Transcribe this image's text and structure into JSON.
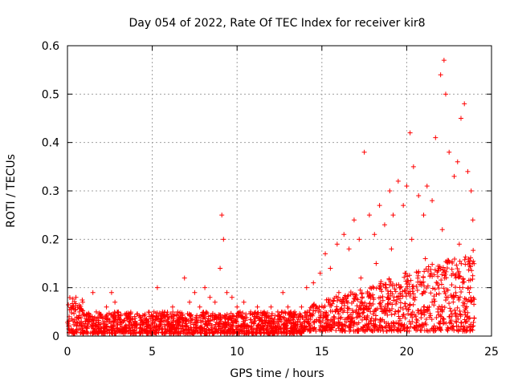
{
  "chart_data": {
    "type": "scatter",
    "title": "Day 054 of 2022, Rate Of TEC Index for receiver kir8",
    "xlabel": "GPS time / hours",
    "ylabel": "ROTI / TECUs",
    "xlim": [
      0,
      25
    ],
    "ylim": [
      0,
      0.6
    ],
    "xticks": [
      0,
      5,
      10,
      15,
      20,
      25
    ],
    "yticks": [
      0,
      0.1,
      0.2,
      0.3,
      0.4,
      0.5,
      0.6
    ],
    "xtick_labels": [
      "0",
      "5",
      "10",
      "15",
      "20",
      "25"
    ],
    "ytick_labels": [
      "0",
      "0.1",
      "0.2",
      "0.3",
      "0.4",
      "0.5",
      "0.6"
    ],
    "grid": true,
    "marker": "+",
    "color": "#ff0000",
    "series": [
      {
        "name": "ROTI",
        "points": [
          [
            0.1,
            0.04
          ],
          [
            0.3,
            0.06
          ],
          [
            0.5,
            0.08
          ],
          [
            0.7,
            0.05
          ],
          [
            0.9,
            0.07
          ],
          [
            1.2,
            0.03
          ],
          [
            1.5,
            0.09
          ],
          [
            1.7,
            0.05
          ],
          [
            2.0,
            0.04
          ],
          [
            2.3,
            0.06
          ],
          [
            2.6,
            0.09
          ],
          [
            2.8,
            0.07
          ],
          [
            3.0,
            0.05
          ],
          [
            3.3,
            0.03
          ],
          [
            3.6,
            0.04
          ],
          [
            4.0,
            0.03
          ],
          [
            4.4,
            0.03
          ],
          [
            4.8,
            0.03
          ],
          [
            5.1,
            0.05
          ],
          [
            5.3,
            0.1
          ],
          [
            5.6,
            0.05
          ],
          [
            5.9,
            0.04
          ],
          [
            6.2,
            0.06
          ],
          [
            6.5,
            0.05
          ],
          [
            6.9,
            0.12
          ],
          [
            7.2,
            0.07
          ],
          [
            7.5,
            0.09
          ],
          [
            7.8,
            0.06
          ],
          [
            8.1,
            0.1
          ],
          [
            8.4,
            0.08
          ],
          [
            8.7,
            0.07
          ],
          [
            9.0,
            0.14
          ],
          [
            9.1,
            0.25
          ],
          [
            9.2,
            0.2
          ],
          [
            9.4,
            0.09
          ],
          [
            9.7,
            0.08
          ],
          [
            10.0,
            0.06
          ],
          [
            10.4,
            0.07
          ],
          [
            10.8,
            0.05
          ],
          [
            11.2,
            0.06
          ],
          [
            11.6,
            0.05
          ],
          [
            12.0,
            0.06
          ],
          [
            12.4,
            0.05
          ],
          [
            12.7,
            0.09
          ],
          [
            13.0,
            0.06
          ],
          [
            13.4,
            0.05
          ],
          [
            13.8,
            0.06
          ],
          [
            14.1,
            0.1
          ],
          [
            14.5,
            0.11
          ],
          [
            14.9,
            0.13
          ],
          [
            15.2,
            0.17
          ],
          [
            15.5,
            0.14
          ],
          [
            15.9,
            0.19
          ],
          [
            16.3,
            0.21
          ],
          [
            16.6,
            0.18
          ],
          [
            16.9,
            0.24
          ],
          [
            17.2,
            0.2
          ],
          [
            17.5,
            0.38
          ],
          [
            17.8,
            0.25
          ],
          [
            18.1,
            0.21
          ],
          [
            18.4,
            0.27
          ],
          [
            18.7,
            0.23
          ],
          [
            19.0,
            0.3
          ],
          [
            19.2,
            0.25
          ],
          [
            19.5,
            0.32
          ],
          [
            19.8,
            0.27
          ],
          [
            20.0,
            0.31
          ],
          [
            20.2,
            0.42
          ],
          [
            20.4,
            0.35
          ],
          [
            20.7,
            0.29
          ],
          [
            21.0,
            0.25
          ],
          [
            21.2,
            0.31
          ],
          [
            21.5,
            0.28
          ],
          [
            21.7,
            0.41
          ],
          [
            22.0,
            0.54
          ],
          [
            22.2,
            0.57
          ],
          [
            22.3,
            0.5
          ],
          [
            22.5,
            0.38
          ],
          [
            22.8,
            0.33
          ],
          [
            23.0,
            0.36
          ],
          [
            23.2,
            0.45
          ],
          [
            23.4,
            0.48
          ],
          [
            23.6,
            0.34
          ],
          [
            23.8,
            0.3
          ],
          [
            23.9,
            0.24
          ],
          [
            1.0,
            0.02
          ],
          [
            3.5,
            0.02
          ],
          [
            6.0,
            0.02
          ],
          [
            8.0,
            0.03
          ],
          [
            10.5,
            0.02
          ],
          [
            12.5,
            0.02
          ],
          [
            14.0,
            0.03
          ],
          [
            15.7,
            0.04
          ],
          [
            17.0,
            0.05
          ],
          [
            18.5,
            0.06
          ],
          [
            19.5,
            0.05
          ],
          [
            20.5,
            0.08
          ],
          [
            21.5,
            0.07
          ],
          [
            22.5,
            0.04
          ],
          [
            23.5,
            0.03
          ],
          [
            16.0,
            0.09
          ],
          [
            17.3,
            0.12
          ],
          [
            18.2,
            0.15
          ],
          [
            19.1,
            0.18
          ],
          [
            20.3,
            0.2
          ],
          [
            21.1,
            0.16
          ],
          [
            22.1,
            0.22
          ],
          [
            23.1,
            0.19
          ],
          [
            23.7,
            0.15
          ],
          [
            18.8,
            0.1
          ],
          [
            19.9,
            0.13
          ],
          [
            20.9,
            0.11
          ],
          [
            21.9,
            0.14
          ],
          [
            22.9,
            0.12
          ],
          [
            23.3,
            0.1
          ]
        ]
      }
    ],
    "band": {
      "note": "Dense background cloud of points",
      "segments": [
        {
          "x": [
            0,
            14
          ],
          "y_low": 0.0,
          "y_high": 0.05
        },
        {
          "x": [
            14,
            24
          ],
          "y_low": 0.02,
          "y_high": 0.15
        }
      ]
    }
  }
}
